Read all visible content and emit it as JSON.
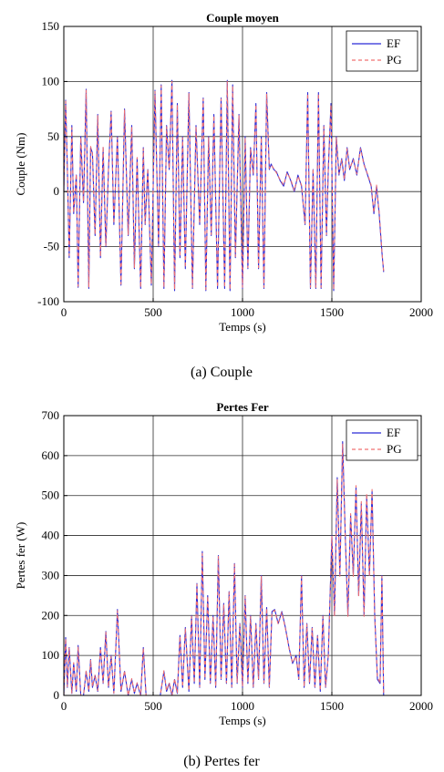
{
  "captions": [
    "(a)    Couple",
    "(b)    Pertes fer"
  ],
  "chart_data": [
    {
      "type": "line",
      "title": "Couple moyen",
      "xlabel": "Temps (s)",
      "ylabel": "Couple (Nm)",
      "xlim": [
        0,
        2000
      ],
      "ylim": [
        -100,
        150
      ],
      "xticks": [
        0,
        500,
        1000,
        1500,
        2000
      ],
      "yticks": [
        -100,
        -50,
        0,
        50,
        100,
        150
      ],
      "grid": true,
      "legend_position": "top-right",
      "colors": {
        "EF": "#2b2bd6",
        "PG": "#f07070"
      },
      "series": [
        {
          "name": "EF",
          "style": "solid",
          "x": [
            0,
            10,
            20,
            30,
            45,
            55,
            70,
            80,
            95,
            110,
            125,
            140,
            150,
            160,
            175,
            190,
            205,
            220,
            235,
            250,
            265,
            280,
            300,
            320,
            340,
            360,
            380,
            395,
            410,
            430,
            445,
            455,
            470,
            490,
            510,
            530,
            545,
            560,
            575,
            590,
            605,
            620,
            635,
            650,
            665,
            680,
            700,
            720,
            740,
            760,
            780,
            795,
            810,
            825,
            840,
            860,
            880,
            900,
            915,
            930,
            945,
            960,
            980,
            1000,
            1015,
            1030,
            1045,
            1060,
            1075,
            1090,
            1105,
            1120,
            1135,
            1150,
            1160,
            1175,
            1190,
            1210,
            1230,
            1250,
            1270,
            1290,
            1310,
            1330,
            1350,
            1365,
            1380,
            1395,
            1410,
            1425,
            1440,
            1455,
            1470,
            1480,
            1495,
            1510,
            1525,
            1540,
            1555,
            1570,
            1585,
            1600,
            1620,
            1640,
            1660,
            1680,
            1700,
            1720,
            1735,
            1750,
            1765,
            1780,
            1790
          ],
          "y": [
            0,
            83,
            20,
            -60,
            60,
            -20,
            15,
            -87,
            50,
            -10,
            93,
            -88,
            40,
            35,
            -40,
            70,
            -60,
            40,
            -50,
            20,
            73,
            -30,
            50,
            -85,
            75,
            -40,
            60,
            -70,
            30,
            -88,
            40,
            -30,
            20,
            -85,
            92,
            -50,
            97,
            -88,
            60,
            20,
            101,
            -90,
            80,
            -60,
            50,
            -70,
            90,
            -88,
            60,
            -30,
            85,
            -90,
            50,
            -40,
            70,
            -88,
            85,
            -88,
            101,
            -90,
            97,
            -60,
            70,
            -88,
            50,
            -70,
            40,
            15,
            80,
            -70,
            50,
            -88,
            90,
            20,
            25,
            20,
            18,
            10,
            5,
            18,
            10,
            0,
            15,
            5,
            -30,
            90,
            -88,
            20,
            -88,
            90,
            -88,
            60,
            -40,
            20,
            80,
            -90,
            50,
            15,
            30,
            10,
            40,
            20,
            30,
            15,
            40,
            25,
            15,
            5,
            -20,
            5,
            -20,
            -55,
            -73
          ]
        },
        {
          "name": "PG",
          "style": "dashed",
          "x": [
            0,
            10,
            20,
            30,
            45,
            55,
            70,
            80,
            95,
            110,
            125,
            140,
            150,
            160,
            175,
            190,
            205,
            220,
            235,
            250,
            265,
            280,
            300,
            320,
            340,
            360,
            380,
            395,
            410,
            430,
            445,
            455,
            470,
            490,
            510,
            530,
            545,
            560,
            575,
            590,
            605,
            620,
            635,
            650,
            665,
            680,
            700,
            720,
            740,
            760,
            780,
            795,
            810,
            825,
            840,
            860,
            880,
            900,
            915,
            930,
            945,
            960,
            980,
            1000,
            1015,
            1030,
            1045,
            1060,
            1075,
            1090,
            1105,
            1120,
            1135,
            1150,
            1160,
            1175,
            1190,
            1210,
            1230,
            1250,
            1270,
            1290,
            1310,
            1330,
            1350,
            1365,
            1380,
            1395,
            1410,
            1425,
            1440,
            1455,
            1470,
            1480,
            1495,
            1510,
            1525,
            1540,
            1555,
            1570,
            1585,
            1600,
            1620,
            1640,
            1660,
            1680,
            1700,
            1720,
            1735,
            1750,
            1765,
            1780,
            1790
          ],
          "y": [
            0,
            82,
            21,
            -58,
            58,
            -19,
            16,
            -86,
            49,
            -9,
            92,
            -87,
            41,
            34,
            -39,
            69,
            -59,
            41,
            -49,
            21,
            72,
            -29,
            49,
            -84,
            74,
            -39,
            59,
            -69,
            31,
            -87,
            39,
            -29,
            21,
            -84,
            91,
            -49,
            96,
            -87,
            59,
            21,
            100,
            -89,
            79,
            -59,
            49,
            -69,
            89,
            -87,
            59,
            -29,
            84,
            -89,
            49,
            -39,
            69,
            -87,
            84,
            -87,
            100,
            -89,
            96,
            -59,
            69,
            -87,
            49,
            -69,
            39,
            16,
            79,
            -69,
            49,
            -87,
            89,
            21,
            24,
            21,
            17,
            11,
            6,
            17,
            11,
            1,
            14,
            6,
            -29,
            89,
            -87,
            21,
            -87,
            89,
            -87,
            59,
            -39,
            21,
            79,
            -89,
            49,
            16,
            29,
            11,
            39,
            21,
            29,
            16,
            39,
            24,
            16,
            6,
            -19,
            6,
            -19,
            -54,
            -72
          ]
        }
      ]
    },
    {
      "type": "line",
      "title": "Pertes Fer",
      "xlabel": "Temps (s)",
      "ylabel": "Pertes fer (W)",
      "xlim": [
        0,
        2000
      ],
      "ylim": [
        0,
        700
      ],
      "xticks": [
        0,
        500,
        1000,
        1500,
        2000
      ],
      "yticks": [
        0,
        100,
        200,
        300,
        400,
        500,
        600,
        700
      ],
      "grid": true,
      "legend_position": "top-right",
      "colors": {
        "EF": "#2b2bd6",
        "PG": "#f07070"
      },
      "series": [
        {
          "name": "EF",
          "style": "solid",
          "x": [
            0,
            10,
            20,
            30,
            45,
            55,
            70,
            80,
            95,
            110,
            125,
            140,
            150,
            160,
            175,
            190,
            205,
            220,
            235,
            250,
            265,
            280,
            300,
            320,
            340,
            360,
            380,
            395,
            410,
            430,
            445,
            460,
            500,
            540,
            560,
            575,
            590,
            605,
            620,
            635,
            650,
            665,
            680,
            700,
            715,
            730,
            745,
            760,
            775,
            790,
            805,
            820,
            835,
            850,
            865,
            880,
            895,
            910,
            925,
            940,
            955,
            970,
            985,
            1000,
            1015,
            1030,
            1045,
            1060,
            1075,
            1090,
            1105,
            1120,
            1135,
            1150,
            1165,
            1180,
            1200,
            1220,
            1240,
            1260,
            1280,
            1300,
            1315,
            1330,
            1345,
            1360,
            1375,
            1390,
            1405,
            1420,
            1435,
            1450,
            1465,
            1480,
            1500,
            1515,
            1530,
            1545,
            1560,
            1575,
            1590,
            1605,
            1620,
            1635,
            1650,
            1665,
            1680,
            1695,
            1710,
            1725,
            1740,
            1755,
            1770,
            1780,
            1790
          ],
          "y": [
            0,
            145,
            20,
            120,
            5,
            80,
            10,
            125,
            0,
            0,
            60,
            10,
            90,
            20,
            50,
            10,
            120,
            30,
            160,
            20,
            100,
            5,
            215,
            10,
            60,
            0,
            40,
            5,
            30,
            0,
            120,
            0,
            0,
            0,
            60,
            10,
            30,
            0,
            40,
            5,
            150,
            20,
            170,
            10,
            200,
            30,
            280,
            20,
            360,
            40,
            250,
            30,
            200,
            20,
            350,
            40,
            230,
            30,
            260,
            20,
            330,
            30,
            180,
            20,
            250,
            30,
            200,
            20,
            180,
            40,
            300,
            30,
            220,
            20,
            210,
            215,
            180,
            210,
            170,
            120,
            80,
            100,
            40,
            300,
            20,
            180,
            30,
            170,
            20,
            150,
            10,
            200,
            20,
            100,
            400,
            200,
            545,
            300,
            635,
            400,
            200,
            450,
            300,
            520,
            250,
            480,
            200,
            500,
            300,
            510,
            200,
            40,
            30,
            300,
            0
          ]
        },
        {
          "name": "PG",
          "style": "dashed",
          "x": [
            0,
            10,
            20,
            30,
            45,
            55,
            70,
            80,
            95,
            110,
            125,
            140,
            150,
            160,
            175,
            190,
            205,
            220,
            235,
            250,
            265,
            280,
            300,
            320,
            340,
            360,
            380,
            395,
            410,
            430,
            445,
            460,
            500,
            540,
            560,
            575,
            590,
            605,
            620,
            635,
            650,
            665,
            680,
            700,
            715,
            730,
            745,
            760,
            775,
            790,
            805,
            820,
            835,
            850,
            865,
            880,
            895,
            910,
            925,
            940,
            955,
            970,
            985,
            1000,
            1015,
            1030,
            1045,
            1060,
            1075,
            1090,
            1105,
            1120,
            1135,
            1150,
            1165,
            1180,
            1200,
            1220,
            1240,
            1260,
            1280,
            1300,
            1315,
            1330,
            1345,
            1360,
            1375,
            1390,
            1405,
            1420,
            1435,
            1450,
            1465,
            1480,
            1500,
            1515,
            1530,
            1545,
            1560,
            1575,
            1590,
            1605,
            1620,
            1635,
            1650,
            1665,
            1680,
            1695,
            1710,
            1725,
            1740,
            1755,
            1770,
            1780,
            1790
          ],
          "y": [
            0,
            142,
            22,
            118,
            6,
            82,
            12,
            122,
            0,
            0,
            62,
            12,
            88,
            22,
            52,
            12,
            118,
            32,
            158,
            22,
            98,
            6,
            212,
            12,
            62,
            0,
            42,
            6,
            32,
            0,
            118,
            0,
            0,
            0,
            62,
            12,
            32,
            0,
            42,
            6,
            148,
            22,
            168,
            12,
            198,
            32,
            278,
            22,
            355,
            42,
            248,
            32,
            198,
            22,
            348,
            42,
            228,
            32,
            258,
            22,
            328,
            32,
            178,
            22,
            248,
            32,
            198,
            22,
            178,
            42,
            298,
            32,
            218,
            22,
            208,
            213,
            178,
            208,
            168,
            118,
            82,
            98,
            42,
            298,
            22,
            178,
            32,
            168,
            22,
            148,
            12,
            198,
            22,
            98,
            398,
            198,
            540,
            298,
            630,
            398,
            198,
            455,
            298,
            525,
            248,
            485,
            198,
            505,
            298,
            515,
            198,
            45,
            32,
            298,
            0
          ]
        }
      ]
    }
  ]
}
